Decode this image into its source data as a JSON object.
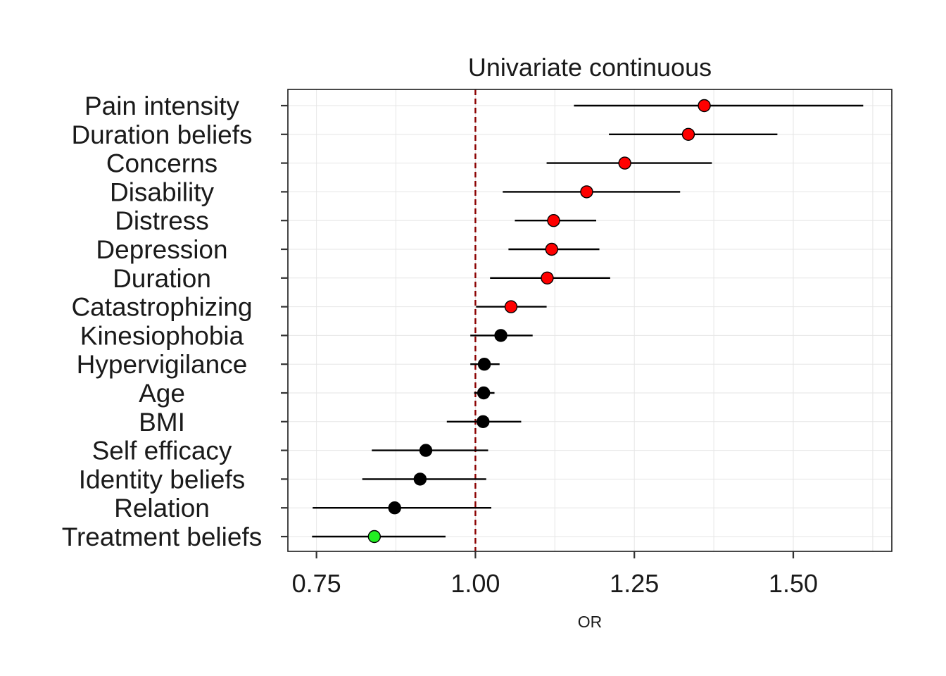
{
  "chart_data": {
    "type": "forest",
    "title": "Univariate continuous",
    "xlabel": "OR",
    "ylabel": "",
    "xlim": [
      0.705,
      1.655
    ],
    "xticks": [
      0.75,
      1.0,
      1.25,
      1.5
    ],
    "xtick_labels": [
      "0.75",
      "1.00",
      "1.25",
      "1.50"
    ],
    "reference_line": {
      "x": 1.0,
      "style": "dashed",
      "color": "#8b0000"
    },
    "grid": true,
    "colors": {
      "significant_positive": "#ff0000",
      "non_significant": "#000000",
      "significant_negative": "#22ee22"
    },
    "rows": [
      {
        "label": "Pain intensity",
        "or": 1.36,
        "lo": 1.155,
        "hi": 1.61,
        "color": "#ff0000"
      },
      {
        "label": "Duration beliefs",
        "or": 1.335,
        "lo": 1.21,
        "hi": 1.475,
        "color": "#ff0000"
      },
      {
        "label": "Concerns",
        "or": 1.235,
        "lo": 1.112,
        "hi": 1.372,
        "color": "#ff0000"
      },
      {
        "label": "Disability",
        "or": 1.175,
        "lo": 1.043,
        "hi": 1.322,
        "color": "#ff0000"
      },
      {
        "label": "Distress",
        "or": 1.123,
        "lo": 1.062,
        "hi": 1.19,
        "color": "#ff0000"
      },
      {
        "label": "Depression",
        "or": 1.12,
        "lo": 1.052,
        "hi": 1.195,
        "color": "#ff0000"
      },
      {
        "label": "Duration",
        "or": 1.113,
        "lo": 1.023,
        "hi": 1.212,
        "color": "#ff0000"
      },
      {
        "label": "Catastrophizing",
        "or": 1.056,
        "lo": 1.001,
        "hi": 1.112,
        "color": "#ff0000"
      },
      {
        "label": "Kinesiophobia",
        "or": 1.04,
        "lo": 0.992,
        "hi": 1.09,
        "color": "#000000"
      },
      {
        "label": "Hypervigilance",
        "or": 1.014,
        "lo": 0.992,
        "hi": 1.038,
        "color": "#000000"
      },
      {
        "label": "Age",
        "or": 1.013,
        "lo": 0.998,
        "hi": 1.03,
        "color": "#000000"
      },
      {
        "label": "BMI",
        "or": 1.012,
        "lo": 0.955,
        "hi": 1.072,
        "color": "#000000"
      },
      {
        "label": "Self efficacy",
        "or": 0.922,
        "lo": 0.837,
        "hi": 1.02,
        "color": "#000000"
      },
      {
        "label": "Identity beliefs",
        "or": 0.913,
        "lo": 0.822,
        "hi": 1.017,
        "color": "#000000"
      },
      {
        "label": "Relation",
        "or": 0.873,
        "lo": 0.744,
        "hi": 1.025,
        "color": "#000000"
      },
      {
        "label": "Treatment beliefs",
        "or": 0.841,
        "lo": 0.743,
        "hi": 0.953,
        "color": "#22ee22"
      }
    ]
  }
}
